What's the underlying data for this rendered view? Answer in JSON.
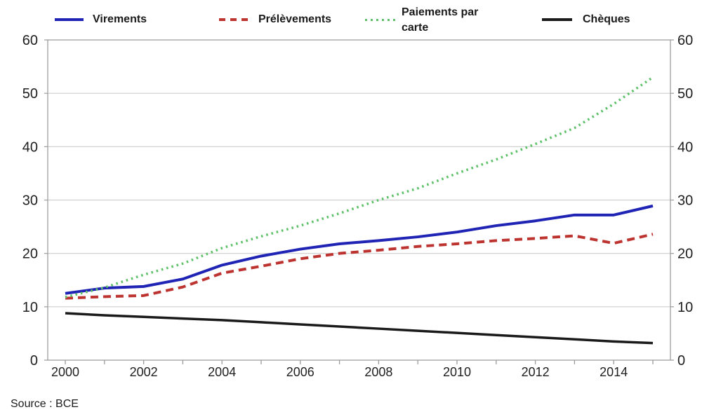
{
  "chart_data": {
    "type": "line",
    "title": "",
    "xlabel": "",
    "ylabel": "",
    "x": [
      2000,
      2001,
      2002,
      2003,
      2004,
      2005,
      2006,
      2007,
      2008,
      2009,
      2010,
      2011,
      2012,
      2013,
      2014,
      2015
    ],
    "series": [
      {
        "name": "Virements",
        "color": "#1f24b4",
        "style": "solid",
        "width": 4,
        "values": [
          12.5,
          13.5,
          13.8,
          15.2,
          17.8,
          19.5,
          20.8,
          21.8,
          22.4,
          23.1,
          24.0,
          25.2,
          26.1,
          27.2,
          27.2,
          28.9
        ]
      },
      {
        "name": "Prélèvements",
        "color": "#bc3330",
        "style": "dashed",
        "width": 4,
        "values": [
          11.6,
          11.9,
          12.1,
          13.7,
          16.3,
          17.6,
          19.0,
          20.0,
          20.6,
          21.3,
          21.8,
          22.4,
          22.8,
          23.3,
          21.9,
          23.6
        ]
      },
      {
        "name": "Paiements par carte",
        "color": "#5dc168",
        "style": "dotted",
        "width": 3.5,
        "values": [
          11.8,
          13.6,
          16.0,
          18.1,
          21.0,
          23.2,
          25.2,
          27.5,
          30.0,
          32.2,
          35.0,
          37.6,
          40.5,
          43.5,
          48.0,
          53.0
        ]
      },
      {
        "name": "Chèques",
        "color": "#1a1a1a",
        "style": "solid",
        "width": 3.5,
        "values": [
          8.8,
          8.4,
          8.1,
          7.8,
          7.5,
          7.1,
          6.7,
          6.3,
          5.9,
          5.5,
          5.1,
          4.7,
          4.3,
          3.9,
          3.5,
          3.2
        ]
      }
    ],
    "ylim": [
      0,
      60
    ],
    "yticks": [
      0,
      10,
      20,
      30,
      40,
      50,
      60
    ],
    "xtick_labels": [
      "2000",
      "2002",
      "2004",
      "2006",
      "2008",
      "2010",
      "2012",
      "2014"
    ],
    "grid": true,
    "legend_position": "top",
    "y_axis_sides": "both",
    "source": "Source : BCE"
  },
  "colors": {
    "background": "#ffffff",
    "grid": "#cdcdcd",
    "border": "#a6a6a6",
    "tick": "#9b9b9b",
    "text": "#1f1f1f"
  }
}
